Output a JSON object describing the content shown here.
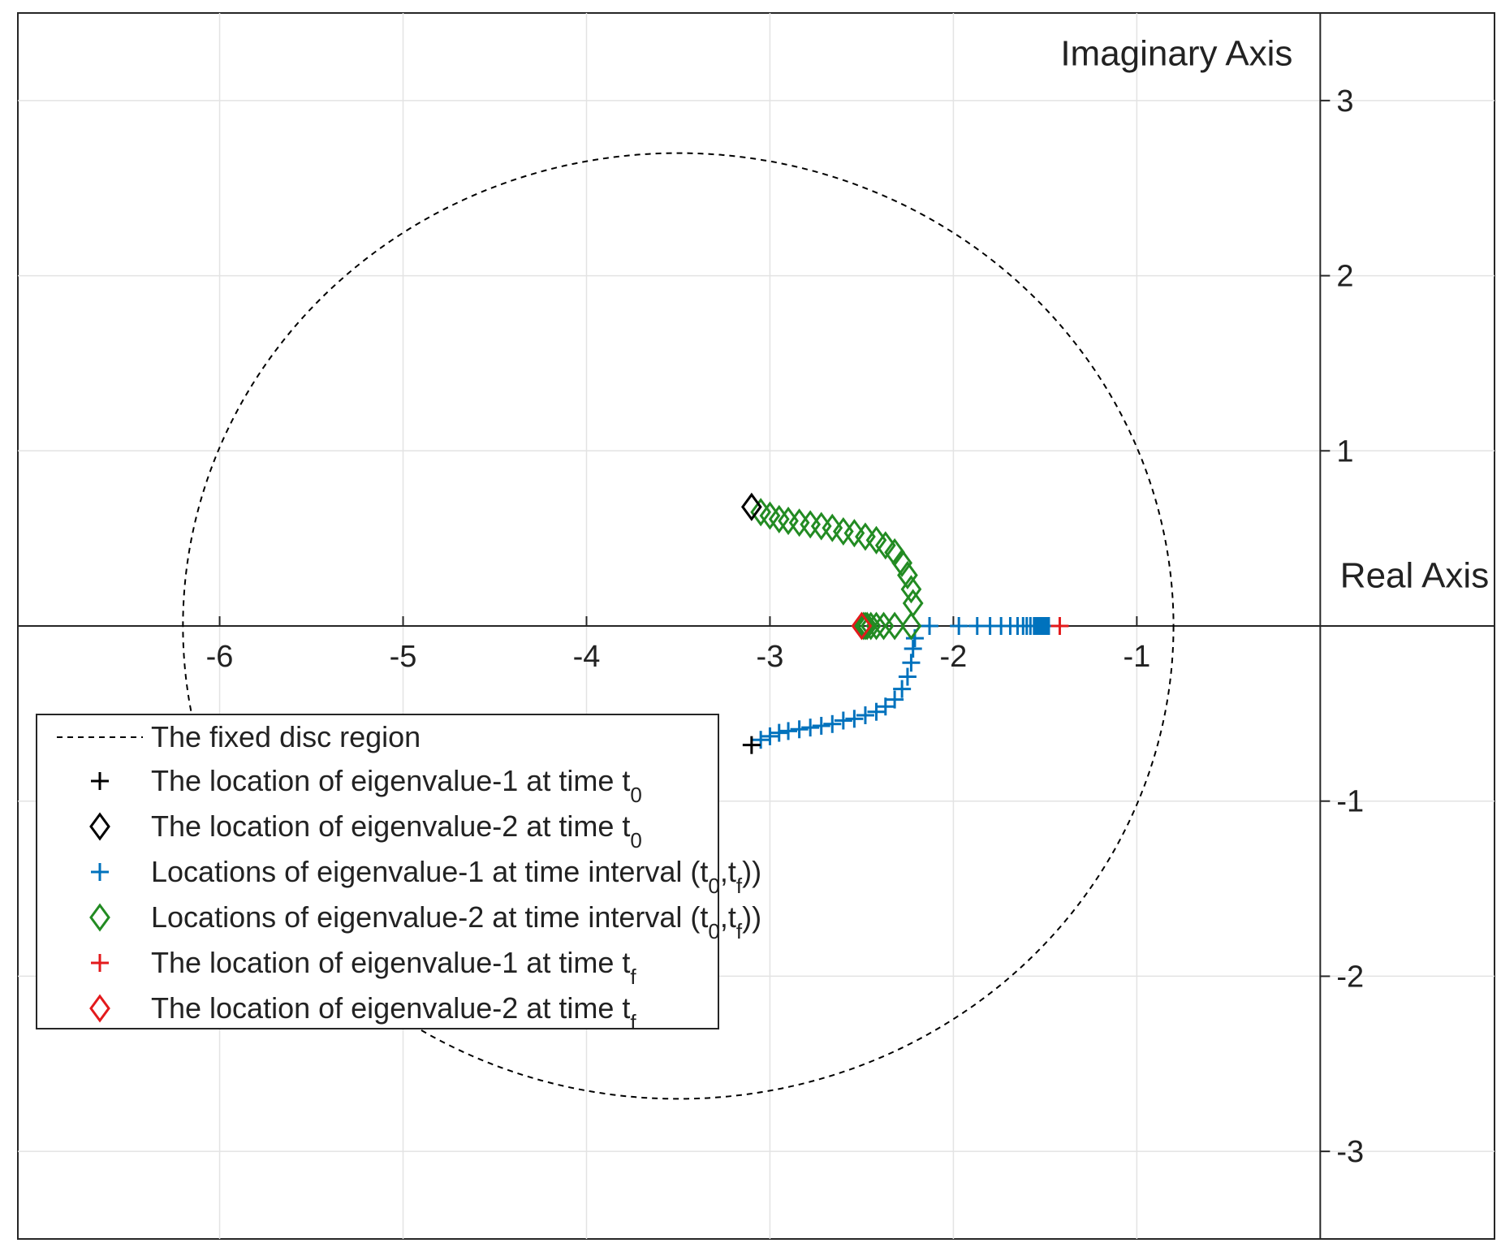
{
  "chart_data": {
    "type": "scatter",
    "xlabel": "Real Axis",
    "ylabel": "Imaginary Axis",
    "xlim": [
      -7.1,
      0.95
    ],
    "ylim": [
      -3.5,
      3.5
    ],
    "grid": true,
    "x_ticks": [
      -6,
      -5,
      -4,
      -3,
      -2,
      -1
    ],
    "y_ticks": [
      -3,
      -2,
      -1,
      1,
      2,
      3
    ],
    "x_tick_labels": [
      "-6",
      "-5",
      "-4",
      "-3",
      "-2",
      "-1"
    ],
    "y_tick_labels": [
      "-3",
      "-2",
      "-1",
      "1",
      "2",
      "3"
    ],
    "legend_position": "bottom-left",
    "disc": {
      "center": [
        -3.5,
        0
      ],
      "radius": 2.7,
      "style": "dashed",
      "color": "#000000"
    },
    "series": [
      {
        "name": "The fixed disc region",
        "kind": "disc",
        "color": "#000000",
        "legend_label": {
          "main": "The fixed disc region"
        }
      },
      {
        "name": "The location of eigenvalue-1 at time t0",
        "kind": "marker",
        "marker": "plus",
        "color": "#000000",
        "legend_label": {
          "main": "The location of eigenvalue-1 at time t",
          "sub1": "0"
        },
        "points": [
          [
            -3.1,
            -0.68
          ]
        ]
      },
      {
        "name": "The location of eigenvalue-2 at time t0",
        "kind": "marker",
        "marker": "diamond",
        "color": "#000000",
        "legend_label": {
          "main": "The location of eigenvalue-2 at time t",
          "sub1": "0"
        },
        "points": [
          [
            -3.1,
            0.68
          ]
        ]
      },
      {
        "name": "Locations of eigenvalue-1 at time interval (t0,tf))",
        "kind": "marker",
        "marker": "plus",
        "color": "#0072BD",
        "legend_label": {
          "main": "Locations of eigenvalue-1 at time interval (t",
          "sub1": "0",
          "mid": ",t",
          "sub2": "f",
          "tail": "))"
        },
        "points": [
          [
            -3.05,
            -0.65
          ],
          [
            -3.0,
            -0.63
          ],
          [
            -2.95,
            -0.61
          ],
          [
            -2.9,
            -0.6
          ],
          [
            -2.84,
            -0.59
          ],
          [
            -2.78,
            -0.58
          ],
          [
            -2.72,
            -0.57
          ],
          [
            -2.66,
            -0.56
          ],
          [
            -2.6,
            -0.54
          ],
          [
            -2.54,
            -0.53
          ],
          [
            -2.48,
            -0.51
          ],
          [
            -2.42,
            -0.49
          ],
          [
            -2.37,
            -0.46
          ],
          [
            -2.32,
            -0.42
          ],
          [
            -2.28,
            -0.36
          ],
          [
            -2.25,
            -0.29
          ],
          [
            -2.23,
            -0.21
          ],
          [
            -2.22,
            -0.13
          ],
          [
            -2.21,
            -0.07
          ],
          [
            -2.13,
            0.0
          ],
          [
            -1.97,
            0.0
          ],
          [
            -1.87,
            0.0
          ],
          [
            -1.8,
            0.0
          ],
          [
            -1.74,
            0.0
          ],
          [
            -1.69,
            0.0
          ],
          [
            -1.65,
            0.0
          ],
          [
            -1.62,
            0.0
          ],
          [
            -1.6,
            0.0
          ],
          [
            -1.58,
            0.0
          ],
          [
            -1.56,
            0.0
          ],
          [
            -1.55,
            0.0
          ],
          [
            -1.54,
            0.0
          ],
          [
            -1.53,
            0.0
          ],
          [
            -1.52,
            0.0
          ],
          [
            -1.51,
            0.0
          ],
          [
            -1.5,
            0.0
          ],
          [
            -1.49,
            0.0
          ],
          [
            -1.48,
            0.0
          ]
        ]
      },
      {
        "name": "Locations of eigenvalue-2 at time interval (t0,tf))",
        "kind": "marker",
        "marker": "diamond",
        "color": "#228B22",
        "legend_label": {
          "main": "Locations of eigenvalue-2 at time interval (t",
          "sub1": "0",
          "mid": ",t",
          "sub2": "f",
          "tail": "))"
        },
        "points": [
          [
            -3.05,
            0.65
          ],
          [
            -3.0,
            0.63
          ],
          [
            -2.95,
            0.61
          ],
          [
            -2.9,
            0.6
          ],
          [
            -2.84,
            0.59
          ],
          [
            -2.78,
            0.58
          ],
          [
            -2.72,
            0.57
          ],
          [
            -2.66,
            0.56
          ],
          [
            -2.6,
            0.54
          ],
          [
            -2.54,
            0.53
          ],
          [
            -2.48,
            0.51
          ],
          [
            -2.42,
            0.49
          ],
          [
            -2.37,
            0.46
          ],
          [
            -2.32,
            0.42
          ],
          [
            -2.28,
            0.36
          ],
          [
            -2.25,
            0.29
          ],
          [
            -2.23,
            0.21
          ],
          [
            -2.22,
            0.13
          ],
          [
            -2.23,
            0.0
          ],
          [
            -2.32,
            0.0
          ],
          [
            -2.38,
            0.0
          ],
          [
            -2.42,
            0.0
          ],
          [
            -2.45,
            0.0
          ],
          [
            -2.47,
            0.0
          ],
          [
            -2.48,
            0.0
          ],
          [
            -2.49,
            0.0
          ]
        ]
      },
      {
        "name": "The location of eigenvalue-1 at time tf",
        "kind": "marker",
        "marker": "plus",
        "color": "#E31A1C",
        "legend_label": {
          "main": "The location of eigenvalue-1 at time t",
          "sub1": "f"
        },
        "points": [
          [
            -1.42,
            0.0
          ]
        ]
      },
      {
        "name": "The location of eigenvalue-2 at time tf",
        "kind": "marker",
        "marker": "diamond",
        "color": "#E31A1C",
        "legend_label": {
          "main": "The location of eigenvalue-2 at time t",
          "sub1": "f"
        },
        "points": [
          [
            -2.5,
            0.0
          ]
        ]
      }
    ]
  }
}
